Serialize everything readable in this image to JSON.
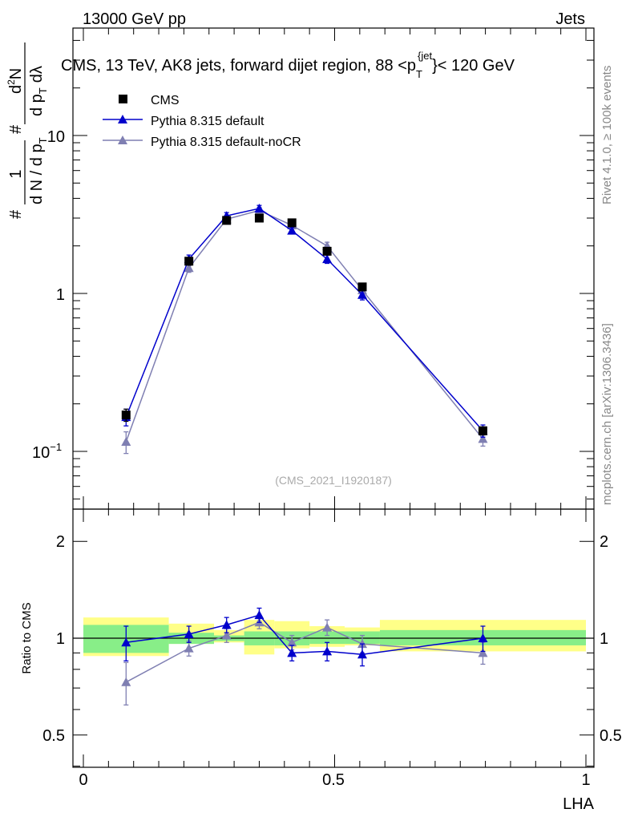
{
  "header": {
    "left": "13000 GeV pp",
    "right": "Jets"
  },
  "side_labels": {
    "rivet": "Rivet 4.1.0, ≥ 100k events",
    "mcplots": "mcplots.cern.ch [arXiv:1306.3436]"
  },
  "main_plot": {
    "title_prefix": "CMS, 13 TeV, AK8 jets, forward dijet region, 88 <p",
    "title_sub": "T",
    "title_sup": "{jet",
    "title_suffix": "}< 120 GeV",
    "analysis_id": "(CMS_2021_I1920187)",
    "ylabel": {
      "hash": "#",
      "frac_num": "1",
      "frac_den_a": "d N / d p",
      "frac_den_sub": "T",
      "frac2_num_hash": "#",
      "frac2_num": "d",
      "frac2_num_sup": "2",
      "frac2_num_b": "N",
      "frac2_den": "d p",
      "frac2_den_sub": "T",
      "frac2_den_b": "dλ"
    },
    "y_tick_labels": {
      "t01_base": "10",
      "t01_exp": "−1",
      "t1": "1",
      "t10": "10"
    }
  },
  "ratio_plot": {
    "ylabel": "Ratio to CMS",
    "y_tick_labels": [
      "0.5",
      "1",
      "2"
    ],
    "y_tick_values": [
      0.5,
      1,
      2
    ]
  },
  "xaxis": {
    "label": "LHA",
    "tick_labels": [
      "0",
      "0.5",
      "1"
    ],
    "tick_values": [
      0,
      0.5,
      1
    ]
  },
  "legend": [
    "CMS",
    "Pythia 8.315 default",
    "Pythia 8.315 default-noCR"
  ],
  "colors": {
    "cms": "#000000",
    "default": "#0000cc",
    "nocr": "#7f7fb2",
    "band_inner": "#88ee88",
    "band_outer": "#ffff88"
  },
  "chart_data": {
    "type": "scatter",
    "title": "CMS, 13 TeV, AK8 jets, forward dijet region, 88 < pT jet < 120 GeV",
    "xlabel": "LHA",
    "ylabel": "(1/dN/dpT) d2N/dpT dλ",
    "xlim": [
      -0.02,
      1.02
    ],
    "ylim_log": [
      0.045,
      55
    ],
    "ratio_ylim_log": [
      0.39,
      2.5
    ],
    "x_edges": [
      0.0,
      0.17,
      0.26,
      0.32,
      0.38,
      0.45,
      0.52,
      0.59,
      1.0
    ],
    "x": [
      0.085,
      0.21,
      0.285,
      0.35,
      0.415,
      0.485,
      0.555,
      0.795
    ],
    "series": [
      {
        "name": "CMS",
        "marker": "square",
        "values": [
          0.17,
          1.6,
          2.9,
          3.0,
          2.8,
          1.85,
          1.1,
          0.135
        ],
        "err_lo": [
          0.015,
          0.09,
          0.13,
          0.12,
          0.12,
          0.09,
          0.06,
          0.008
        ],
        "err_hi": [
          0.015,
          0.09,
          0.13,
          0.12,
          0.12,
          0.09,
          0.06,
          0.008
        ]
      },
      {
        "name": "Pythia 8.315 default",
        "marker": "triangle",
        "values": [
          0.165,
          1.65,
          3.1,
          3.45,
          2.5,
          1.65,
          0.98,
          0.135
        ],
        "err_lo": [
          0.02,
          0.1,
          0.15,
          0.16,
          0.12,
          0.1,
          0.07,
          0.012
        ],
        "err_hi": [
          0.02,
          0.1,
          0.15,
          0.16,
          0.12,
          0.1,
          0.07,
          0.012
        ]
      },
      {
        "name": "Pythia 8.315 default-noCR",
        "marker": "triangle",
        "values": [
          0.115,
          1.45,
          2.95,
          3.35,
          2.7,
          2.0,
          1.05,
          0.12
        ],
        "err_lo": [
          0.018,
          0.09,
          0.15,
          0.16,
          0.13,
          0.11,
          0.07,
          0.012
        ],
        "err_hi": [
          0.018,
          0.09,
          0.15,
          0.16,
          0.13,
          0.11,
          0.07,
          0.012
        ]
      }
    ],
    "ratio": {
      "ylabel": "Ratio to CMS",
      "series": [
        {
          "name": "Pythia 8.315 default",
          "values": [
            0.97,
            1.03,
            1.1,
            1.18,
            0.9,
            0.91,
            0.89,
            1.0
          ],
          "err": [
            0.12,
            0.06,
            0.06,
            0.06,
            0.05,
            0.06,
            0.07,
            0.09
          ]
        },
        {
          "name": "Pythia 8.315 default-noCR",
          "values": [
            0.73,
            0.93,
            1.02,
            1.12,
            0.97,
            1.08,
            0.96,
            0.9
          ],
          "err": [
            0.11,
            0.05,
            0.05,
            0.05,
            0.05,
            0.06,
            0.06,
            0.07
          ]
        }
      ],
      "band_inner": [
        [
          0.9,
          1.1
        ],
        [
          0.96,
          1.04
        ],
        [
          0.98,
          1.02
        ],
        [
          0.95,
          1.05
        ],
        [
          0.95,
          1.05
        ],
        [
          0.96,
          1.05
        ],
        [
          0.96,
          1.05
        ],
        [
          0.95,
          1.06
        ]
      ],
      "band_outer": [
        [
          0.88,
          1.16
        ],
        [
          0.96,
          1.11
        ],
        [
          0.97,
          1.06
        ],
        [
          0.89,
          1.14
        ],
        [
          0.93,
          1.13
        ],
        [
          0.94,
          1.09
        ],
        [
          0.95,
          1.08
        ],
        [
          0.91,
          1.14
        ]
      ]
    }
  }
}
